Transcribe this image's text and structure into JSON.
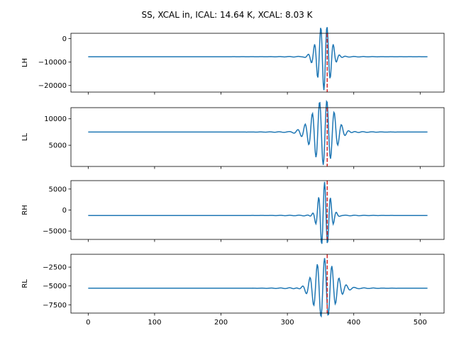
{
  "chart_data": {
    "type": "line",
    "title": "SS, XCAL in, ICAL: 14.64 K, XCAL: 8.03 K",
    "xlim": [
      -26,
      536
    ],
    "x_ticks": [
      0,
      100,
      200,
      300,
      400,
      500
    ],
    "x_tick_labels": [
      "0",
      "100",
      "200",
      "300",
      "400",
      "500"
    ],
    "vline_x": 360,
    "colors": {
      "series": "#1f77b4",
      "vline": "#d62728"
    },
    "n_points": 512,
    "subplots": [
      {
        "ylabel": "LH",
        "ylim": [
          -22800,
          2300
        ],
        "y_ticks": [
          0,
          -10000,
          -20000
        ],
        "y_tick_labels": [
          "0",
          "−10000",
          "−20000"
        ],
        "baseline": -7700,
        "center": 355,
        "amplitude": -14300,
        "period": 9.5,
        "decay": 10,
        "ripple": 200,
        "key_points": [
          [
            0,
            -7700
          ],
          [
            300,
            -7700
          ],
          [
            351,
            0
          ],
          [
            356,
            -21500
          ],
          [
            361,
            -500
          ],
          [
            370,
            -10000
          ],
          [
            400,
            -7700
          ],
          [
            511,
            -7700
          ]
        ]
      },
      {
        "ylabel": "LL",
        "ylim": [
          1000,
          12100
        ],
        "y_ticks": [
          5000,
          10000
        ],
        "y_tick_labels": [
          "5000",
          "10000"
        ],
        "baseline": 7500,
        "center": 354,
        "amplitude": -6200,
        "period": 11,
        "decay": 16,
        "ripple": 150,
        "key_points": [
          [
            0,
            7500
          ],
          [
            300,
            7500
          ],
          [
            351,
            11500
          ],
          [
            356,
            1300
          ],
          [
            362,
            10800
          ],
          [
            400,
            7500
          ],
          [
            511,
            7500
          ]
        ]
      },
      {
        "ylabel": "RH",
        "ylim": [
          -7000,
          7000
        ],
        "y_ticks": [
          5000,
          0,
          -5000
        ],
        "y_tick_labels": [
          "5000",
          "0",
          "−5000"
        ],
        "baseline": -1300,
        "center": 356,
        "amplitude": 8000,
        "period": 9,
        "decay": 8,
        "ripple": 100,
        "key_points": [
          [
            0,
            -1300
          ],
          [
            300,
            -1300
          ],
          [
            352,
            -6000
          ],
          [
            357,
            6500
          ],
          [
            362,
            -6000
          ],
          [
            400,
            -1300
          ],
          [
            511,
            -1300
          ]
        ]
      },
      {
        "ylabel": "RL",
        "ylim": [
          -8600,
          -800
        ],
        "y_ticks": [
          -2500,
          -5000,
          -7500
        ],
        "y_tick_labels": [
          "−2500",
          "−5000",
          "−7500"
        ],
        "baseline": -5300,
        "center": 356,
        "amplitude": 4000,
        "period": 11,
        "decay": 15,
        "ripple": 120,
        "key_points": [
          [
            0,
            -5300
          ],
          [
            300,
            -5300
          ],
          [
            351,
            -8000
          ],
          [
            356,
            -1300
          ],
          [
            362,
            -8000
          ],
          [
            400,
            -5300
          ],
          [
            511,
            -5300
          ]
        ]
      }
    ]
  }
}
